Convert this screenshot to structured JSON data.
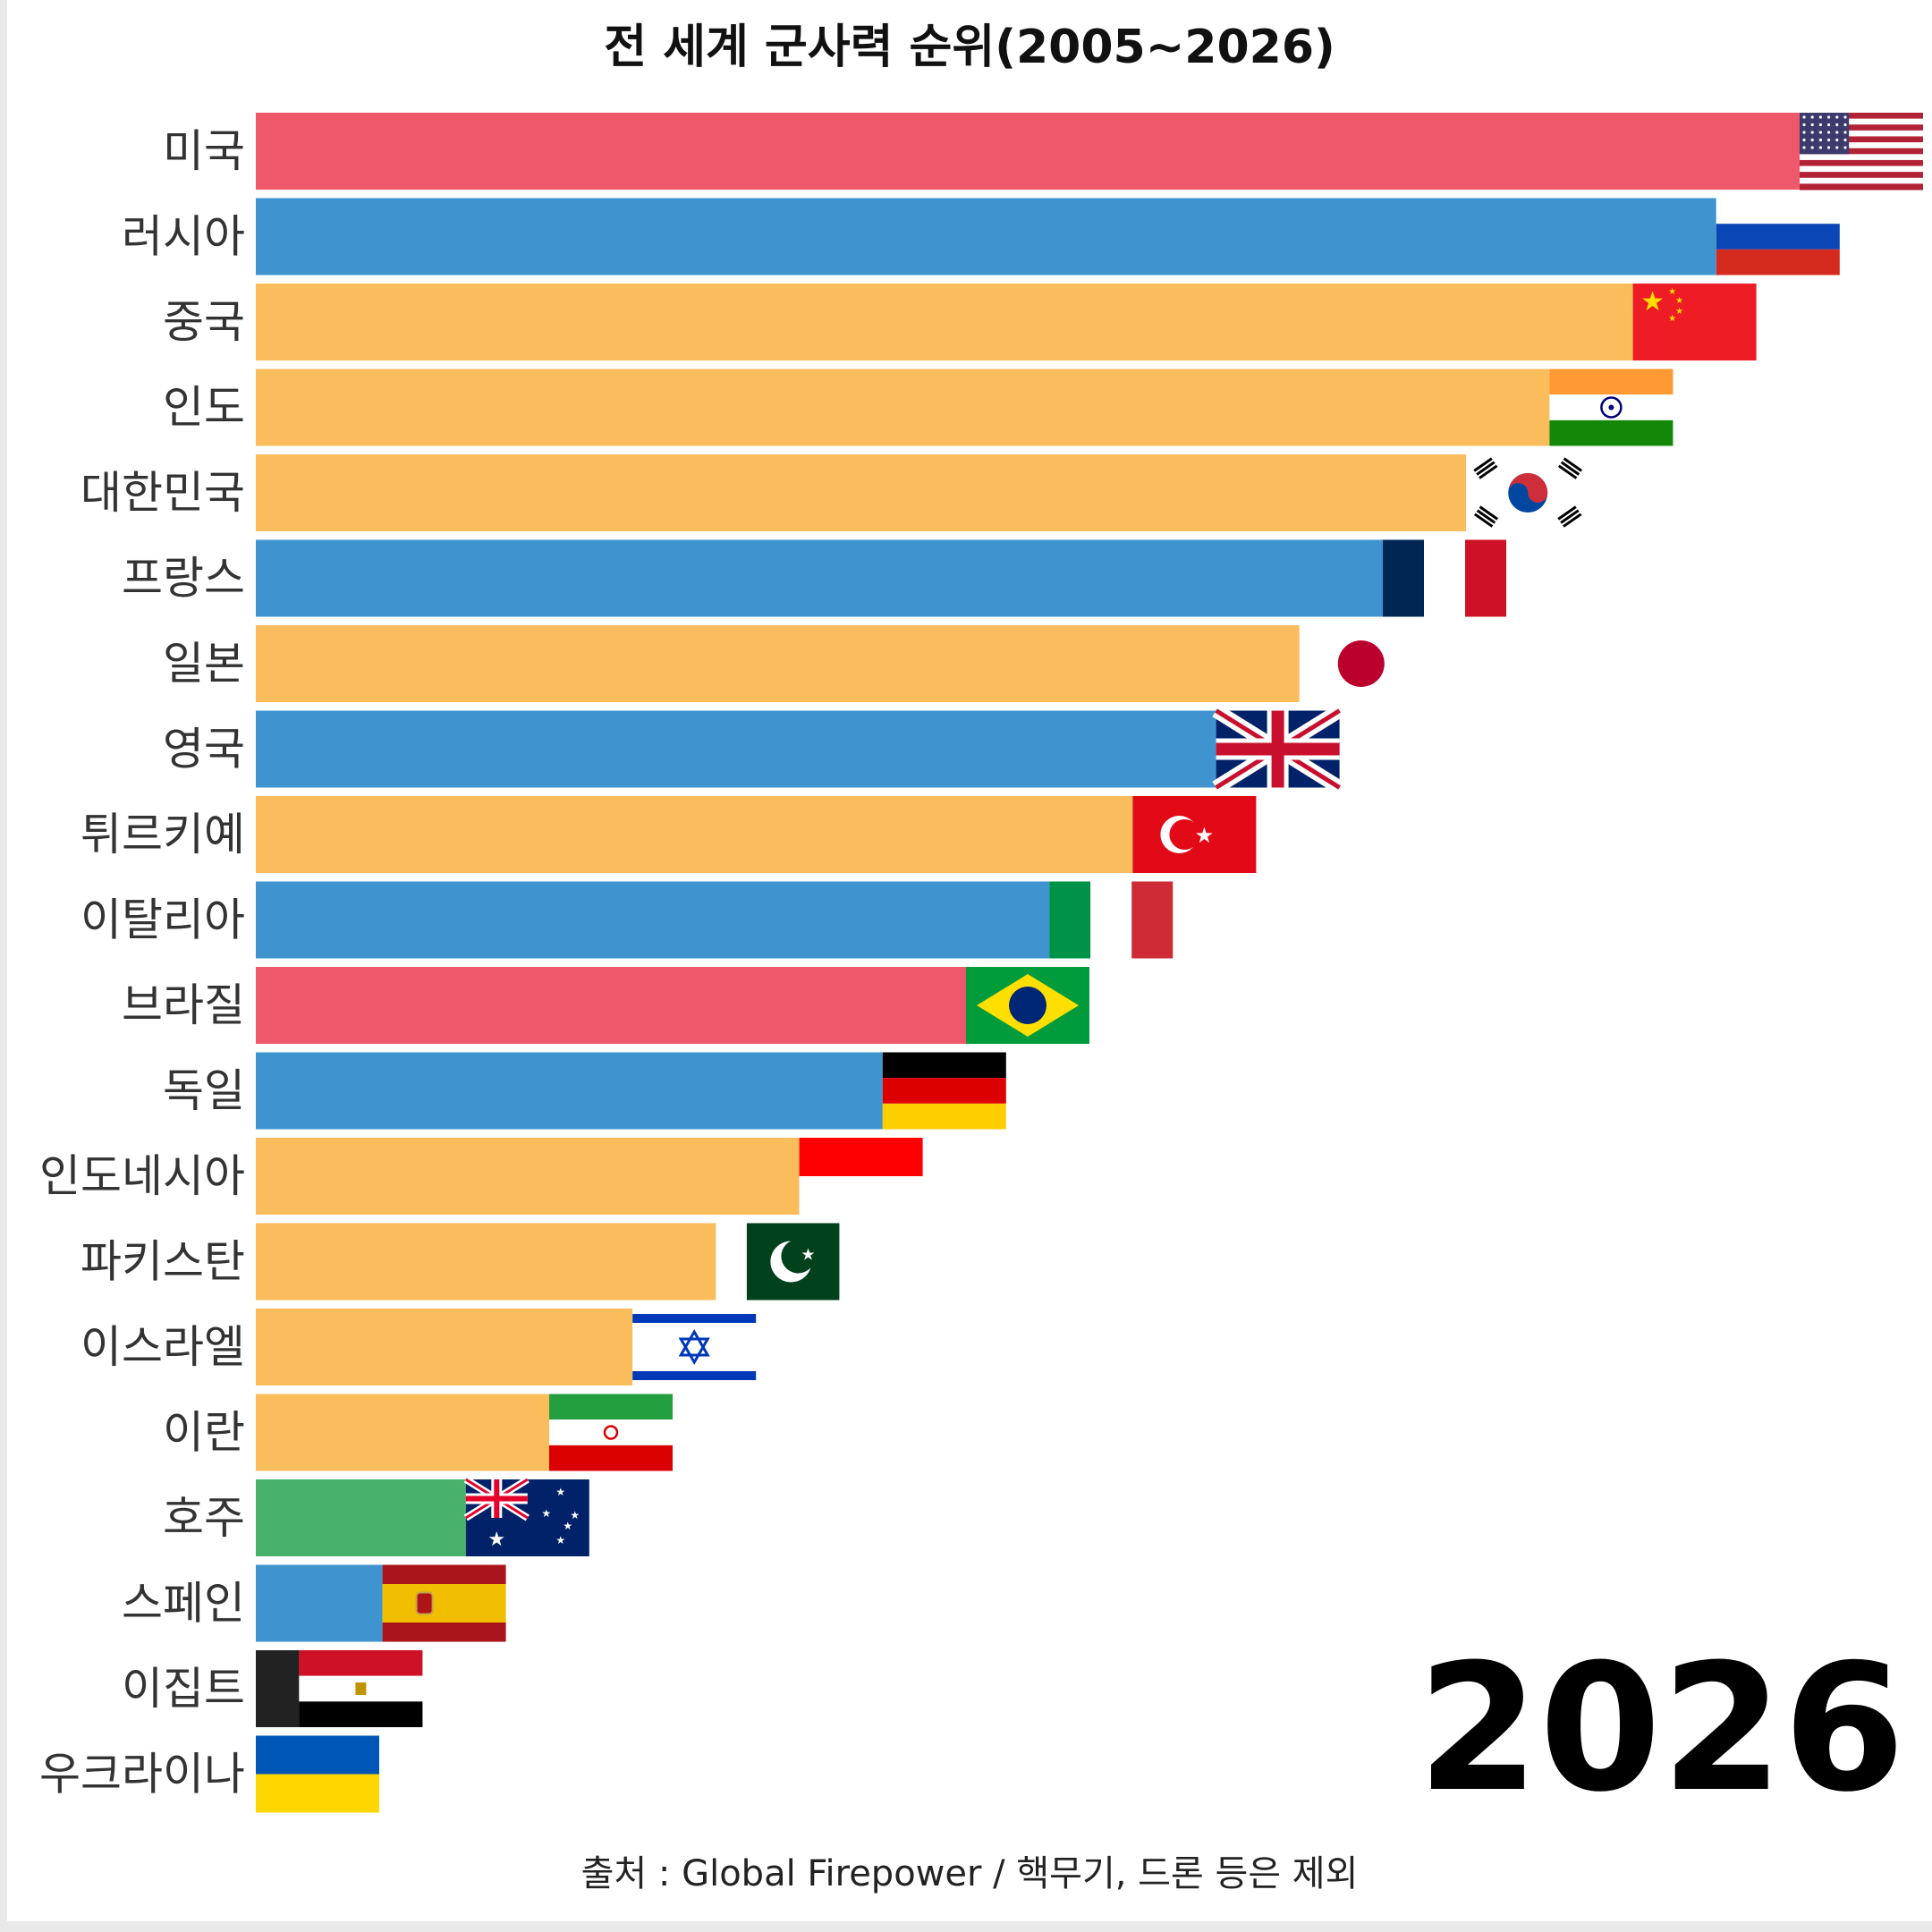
{
  "chart_data": {
    "type": "bar",
    "orientation": "horizontal",
    "title": "전 세계 군사력 순위(2005~2026)",
    "source": "출처 : Global Firepower / 핵무기, 드론 등은 제외",
    "current_year": "2026",
    "xlim": [
      0,
      20
    ],
    "grid": false,
    "legend": "none",
    "categories": [
      "미국",
      "러시아",
      "중국",
      "인도",
      "대한민국",
      "프랑스",
      "일본",
      "영국",
      "튀르키예",
      "이탈리아",
      "브라질",
      "독일",
      "인도네시아",
      "파키스탄",
      "이스라엘",
      "이란",
      "호주",
      "스페인",
      "이집트",
      "우크라이나"
    ],
    "values": [
      20,
      19,
      18,
      17,
      16,
      15,
      14,
      13,
      12,
      11,
      10,
      9,
      8,
      7,
      6,
      5,
      4,
      3,
      2,
      1
    ],
    "continent": [
      "americas",
      "europe",
      "asia",
      "asia",
      "asia",
      "europe",
      "asia",
      "europe",
      "asia",
      "europe",
      "americas",
      "europe",
      "asia",
      "asia",
      "asia",
      "asia",
      "oceania",
      "europe",
      "africa",
      "europe"
    ],
    "flags": [
      "us-flag-icon",
      "russia-flag-icon",
      "china-flag-icon",
      "india-flag-icon",
      "korea-flag-icon",
      "france-flag-icon",
      "japan-flag-icon",
      "uk-flag-icon",
      "turkey-flag-icon",
      "italy-flag-icon",
      "brazil-flag-icon",
      "germany-flag-icon",
      "indonesia-flag-icon",
      "pakistan-flag-icon",
      "israel-flag-icon",
      "iran-flag-icon",
      "australia-flag-icon",
      "spain-flag-icon",
      "egypt-flag-icon",
      "ukraine-flag-icon"
    ],
    "colors": {
      "americas": "#ef586a",
      "europe": "#3f94cf",
      "asia": "#fbbd5c",
      "oceania": "#48b26b",
      "africa": "#222222"
    }
  }
}
